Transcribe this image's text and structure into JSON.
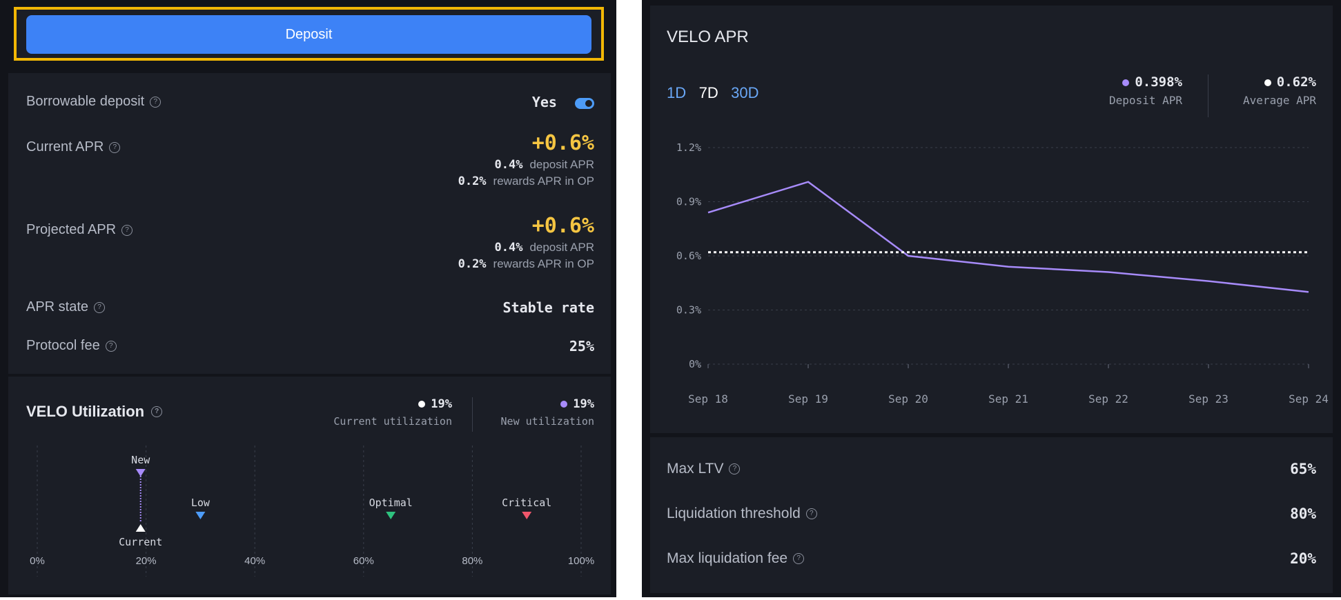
{
  "deposit": {
    "label": "Deposit"
  },
  "details": {
    "borrowable": {
      "label": "Borrowable deposit",
      "value": "Yes",
      "enabled": true
    },
    "current_apr": {
      "label": "Current APR",
      "value": "+0.6%",
      "deposit_value": "0.4%",
      "deposit_text": "deposit APR",
      "rewards_value": "0.2%",
      "rewards_text": "rewards APR in OP"
    },
    "projected_apr": {
      "label": "Projected APR",
      "value": "+0.6%",
      "deposit_value": "0.4%",
      "deposit_text": "deposit APR",
      "rewards_value": "0.2%",
      "rewards_text": "rewards APR in OP"
    },
    "apr_state": {
      "label": "APR state",
      "value": "Stable rate"
    },
    "protocol_fee": {
      "label": "Protocol fee",
      "value": "25%"
    }
  },
  "utilization": {
    "title": "VELO Utilization",
    "current": {
      "value": "19%",
      "label": "Current utilization",
      "color": "#ffffff"
    },
    "new": {
      "value": "19%",
      "label": "New utilization",
      "color": "#a78bfa"
    },
    "markers": [
      {
        "name": "New",
        "pos": 0.19,
        "color": "#a78bfa"
      },
      {
        "name": "Low",
        "pos": 0.3,
        "color": "#4d9cf8"
      },
      {
        "name": "Optimal",
        "pos": 0.65,
        "color": "#2ec27e"
      },
      {
        "name": "Critical",
        "pos": 0.9,
        "color": "#f0566b"
      }
    ],
    "current_marker": {
      "name": "Current",
      "pos": 0.19
    },
    "ticks": [
      "0%",
      "20%",
      "40%",
      "60%",
      "80%",
      "100%"
    ]
  },
  "apr_chart": {
    "title": "VELO APR",
    "timeframes": [
      {
        "label": "1D",
        "active": false
      },
      {
        "label": "7D",
        "active": true
      },
      {
        "label": "30D",
        "active": false
      }
    ],
    "legend": {
      "deposit": {
        "value": "0.398%",
        "label": "Deposit APR",
        "color": "#a78bfa"
      },
      "average": {
        "value": "0.62%",
        "label": "Average APR",
        "color": "#ffffff"
      }
    }
  },
  "chart_data": {
    "type": "line",
    "title": "VELO APR",
    "categories": [
      "Sep 18",
      "Sep 19",
      "Sep 20",
      "Sep 21",
      "Sep 22",
      "Sep 23",
      "Sep 24"
    ],
    "series": [
      {
        "name": "Deposit APR",
        "values": [
          0.84,
          1.01,
          0.6,
          0.54,
          0.51,
          0.46,
          0.4
        ],
        "color": "#a78bfa"
      },
      {
        "name": "Average APR",
        "values": [
          0.62,
          0.62,
          0.62,
          0.62,
          0.62,
          0.62,
          0.62
        ],
        "color": "#ffffff",
        "style": "dotted"
      }
    ],
    "yticks": [
      "0%",
      "0.3%",
      "0.6%",
      "0.9%",
      "1.2%"
    ],
    "ylim": [
      0,
      1.2
    ],
    "grid": true
  },
  "stats": {
    "max_ltv": {
      "label": "Max LTV",
      "value": "65%"
    },
    "liq_threshold": {
      "label": "Liquidation threshold",
      "value": "80%"
    },
    "max_liq_fee": {
      "label": "Max liquidation fee",
      "value": "20%"
    }
  }
}
